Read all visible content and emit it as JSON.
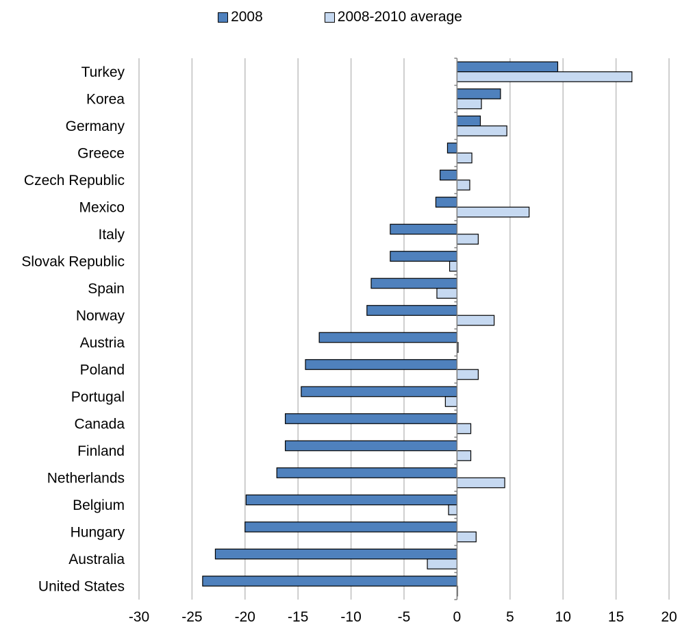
{
  "chart_data": {
    "type": "bar",
    "orientation": "horizontal",
    "categories": [
      "Turkey",
      "Korea",
      "Germany",
      "Greece",
      "Czech Republic",
      "Mexico",
      "Italy",
      "Slovak Republic",
      "Spain",
      "Norway",
      "Austria",
      "Poland",
      "Portugal",
      "Canada",
      "Finland",
      "Netherlands",
      "Belgium",
      "Hungary",
      "Australia",
      "United States"
    ],
    "series": [
      {
        "name": "2008",
        "color": "#4f81bd",
        "values": [
          9.5,
          4.1,
          2.2,
          -0.9,
          -1.6,
          -2.0,
          -6.3,
          -6.3,
          -8.1,
          -8.5,
          -13.0,
          -14.3,
          -14.7,
          -16.2,
          -16.2,
          -17.0,
          -19.9,
          -20.0,
          -22.8,
          -24.0
        ]
      },
      {
        "name": "2008-2010 average",
        "color": "#c6d9f1",
        "values": [
          16.5,
          2.3,
          4.7,
          1.4,
          1.2,
          6.8,
          2.0,
          -0.7,
          -1.9,
          3.5,
          0.1,
          2.0,
          -1.1,
          1.3,
          1.3,
          4.5,
          -0.8,
          1.8,
          -2.8,
          0.0
        ]
      }
    ],
    "xticks": [
      "-30",
      "-25",
      "-20",
      "-15",
      "-10",
      "-5",
      "0",
      "5",
      "10",
      "15",
      "20"
    ],
    "xlim": [
      -30,
      20
    ],
    "grid": "vertical",
    "legend_position": "top-center",
    "title": "",
    "xlabel": "",
    "ylabel": ""
  }
}
